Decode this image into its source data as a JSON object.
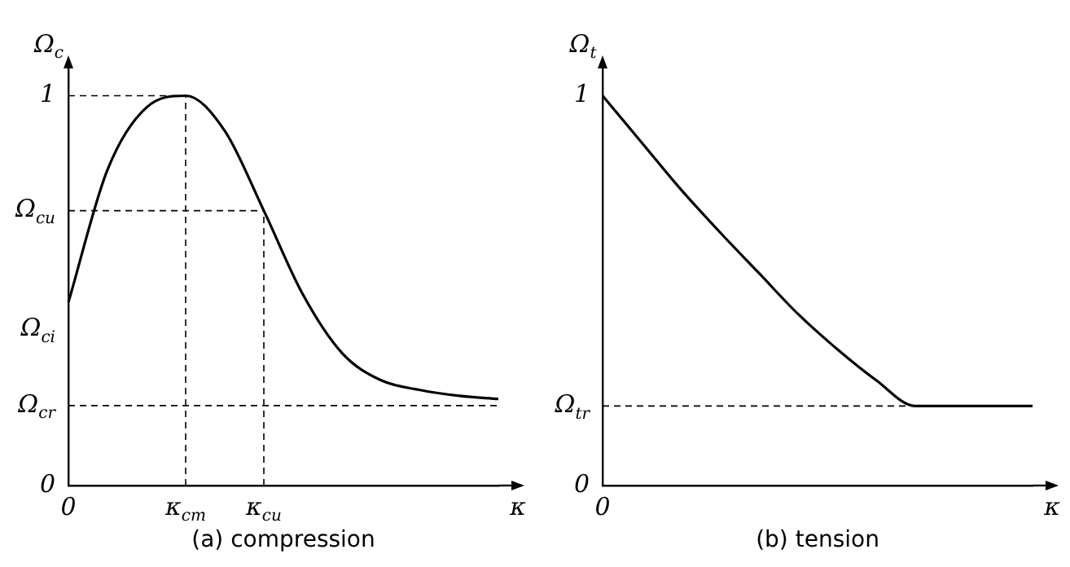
{
  "chart_data": [
    {
      "type": "line",
      "xlabel": "κ",
      "ylabel": "Ω$_{c}$",
      "annotations": [
        "(a) compression"
      ],
      "ylim": [
        0,
        1.07
      ],
      "categories": [
        "0",
        null,
        null,
        "κ$_{cm}$",
        null,
        "κ$_{cu}$",
        null,
        null,
        null,
        null,
        null,
        null
      ],
      "yticks": [
        {
          "value": 0,
          "label": "0"
        },
        {
          "value": 0.205,
          "label": "Ω$_{cr}$"
        },
        {
          "value": 0.4,
          "label": "Ω$_{ci}$"
        },
        {
          "value": 0.705,
          "label": "Ω$_{cu}$"
        },
        {
          "value": 1,
          "label": "1"
        }
      ],
      "grid": false,
      "legend": false,
      "marker": "none",
      "ref_lines": [
        {
          "axis": "x",
          "value": "κ$_{cm}$",
          "line_style": "dashed",
          "color": "#000000"
        },
        {
          "axis": "x",
          "value": "κ$_{cu}$",
          "line_style": "dashed",
          "color": "#000000"
        }
      ],
      "series": [
        {
          "color": "#000000",
          "line_style": "solid",
          "values": [
            0.47,
            0.81,
            0.97,
            1,
            0.91,
            0.705,
            0.49,
            0.34,
            0.27,
            0.245,
            0.23,
            0.222
          ]
        },
        {
          "color": "#000000",
          "line_style": "dashed",
          "values": [
            1,
            1,
            1,
            1,
            null,
            null,
            null,
            null,
            null,
            null,
            null,
            null
          ]
        },
        {
          "color": "#000000",
          "line_style": "dashed",
          "values": [
            0.705,
            0.705,
            0.705,
            0.705,
            0.705,
            0.705,
            null,
            null,
            null,
            null,
            null,
            null
          ]
        },
        {
          "color": "#000000",
          "line_style": "dashed",
          "values": [
            0.205,
            0.205,
            0.205,
            0.205,
            0.205,
            0.205,
            0.205,
            0.205,
            0.205,
            0.205,
            0.205,
            0.205
          ]
        }
      ]
    },
    {
      "type": "line",
      "xlabel": "κ",
      "ylabel": "Ω$_{t}$",
      "annotations": [
        "(b) tension"
      ],
      "ylim": [
        0,
        1.07
      ],
      "categories": [
        "0",
        null,
        null,
        null,
        null,
        null,
        null,
        null,
        null,
        null,
        null,
        null
      ],
      "yticks": [
        {
          "value": 0,
          "label": "0"
        },
        {
          "value": 0.204,
          "label": "Ω$_{tr}$"
        },
        {
          "value": 1,
          "label": "1"
        }
      ],
      "grid": false,
      "legend": false,
      "marker": "none",
      "series": [
        {
          "color": "#000000",
          "line_style": "solid",
          "values": [
            1,
            0.88,
            0.76,
            0.65,
            0.545,
            0.44,
            0.35,
            0.27,
            0.204,
            0.204,
            0.204,
            0.204
          ]
        },
        {
          "color": "#000000",
          "line_style": "dashed",
          "values": [
            0.204,
            0.204,
            0.204,
            0.204,
            0.204,
            0.204,
            0.204,
            0.204,
            0.204,
            null,
            null,
            null
          ]
        }
      ]
    }
  ]
}
